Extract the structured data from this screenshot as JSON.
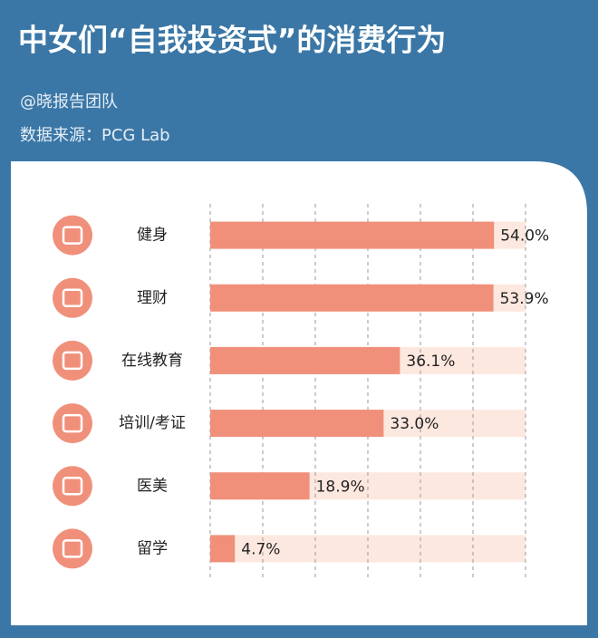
{
  "chart_data": {
    "type": "bar",
    "orientation": "horizontal",
    "title": "中女们“自我投资式”的消费行为",
    "author": "@晓报告团队",
    "source": "数据来源：PCG Lab",
    "categories": [
      "健身",
      "理财",
      "在线教育",
      "培训/考证",
      "医美",
      "留学"
    ],
    "values": [
      54.0,
      53.9,
      36.1,
      33.0,
      18.9,
      4.7
    ],
    "value_labels": [
      "54.0%",
      "53.9%",
      "36.1%",
      "33.0%",
      "18.9%",
      "4.7%"
    ],
    "color": "#f0907a",
    "track_color": "#fde8df",
    "xlim": [
      0,
      60
    ],
    "xticks": [
      0,
      10,
      20,
      30,
      40,
      50,
      60
    ],
    "grid": true
  }
}
